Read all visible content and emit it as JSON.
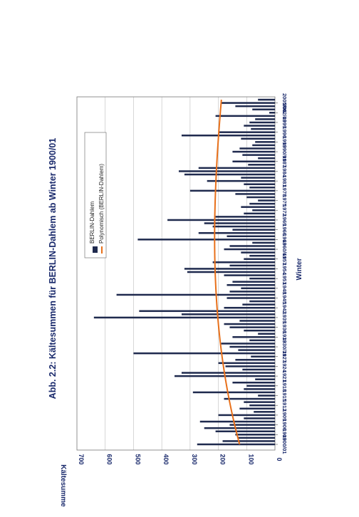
{
  "chart_data": {
    "type": "bar",
    "title": "Abb. 2.2: Kältesummen für BERLIN-Dahlem ab Winter 1900/01",
    "xlabel": "Winter",
    "ylabel": "Kältesumme",
    "ylim": [
      0,
      700
    ],
    "yticks": [
      0,
      100,
      200,
      300,
      400,
      500,
      600,
      700
    ],
    "grid": true,
    "legend_position": "top-right",
    "orientation": "rotated-90",
    "categories": [
      "1900/01",
      "1901/02",
      "1902/03",
      "1903/04",
      "1904/05",
      "1905/06",
      "1906/07",
      "1907/08",
      "1908/09",
      "1909/10",
      "1910/11",
      "1911/12",
      "1912/13",
      "1913/14",
      "1914/15",
      "1915/16",
      "1916/17",
      "1917/18",
      "1918/19",
      "1919/20",
      "1920/21",
      "1921/22",
      "1922/23",
      "1923/24",
      "1924/25",
      "1925/26",
      "1926/27",
      "1927/28",
      "1928/29",
      "1929/30",
      "1930/31",
      "1931/32",
      "1932/33",
      "1933/34",
      "1934/35",
      "1935/36",
      "1936/37",
      "1937/38",
      "1938/39",
      "1939/40",
      "1940/41",
      "1941/42",
      "1942/43",
      "1943/44",
      "1944/45",
      "1945/46",
      "1946/47",
      "1947/48",
      "1948/49",
      "1949/50",
      "1950/51",
      "1951/52",
      "1952/53",
      "1953/54",
      "1954/55",
      "1955/56",
      "1956/57",
      "1957/58",
      "1958/59",
      "1959/60",
      "1960/61",
      "1961/62",
      "1962/63",
      "1963/64",
      "1964/65",
      "1965/66",
      "1966/67",
      "1967/68",
      "1968/69",
      "1969/70",
      "1970/71",
      "1971/72",
      "1972/73",
      "1973/74",
      "1974/75",
      "1975/76",
      "1976/77",
      "1977/78",
      "1978/79",
      "1979/80",
      "1980/81",
      "1981/82",
      "1982/83",
      "1983/84",
      "1984/85",
      "1985/86",
      "1986/87",
      "1987/88",
      "1988/89",
      "1989/90",
      "1990/91",
      "1991/92",
      "1992/93",
      "1993/94",
      "1994/95",
      "1995/96",
      "1996/97",
      "1997/98",
      "1998/99",
      "1999/00",
      "2000/01",
      "2001/02",
      "2002/03",
      "2003/04",
      "2004/05",
      "2005/06",
      "2006/07"
    ],
    "tick_labels": [
      "1900/01",
      "1903",
      "1906",
      "1909",
      "1912",
      "1915",
      "1918",
      "1921",
      "1924",
      "1927",
      "1930/31",
      "1933",
      "1936",
      "1939",
      "1942",
      "1945",
      "1948",
      "1951",
      "1954",
      "1957",
      "1960/61",
      "1963",
      "1966",
      "1969",
      "1972",
      "1975",
      "1978",
      "1981",
      "1984",
      "1987",
      "1990/91",
      "1993",
      "1996",
      "1999",
      "2002/03",
      "2005/06"
    ],
    "tick_every": 3,
    "series": [
      {
        "name": "BERLIN-Dahlem",
        "type": "bar",
        "color": "#1f2a4e",
        "values": [
          275,
          185,
          130,
          140,
          210,
          250,
          160,
          265,
          110,
          200,
          75,
          125,
          90,
          110,
          180,
          60,
          290,
          110,
          100,
          150,
          70,
          355,
          330,
          115,
          175,
          200,
          140,
          85,
          500,
          130,
          160,
          190,
          90,
          150,
          60,
          110,
          160,
          180,
          125,
          640,
          330,
          480,
          180,
          115,
          90,
          170,
          560,
          160,
          120,
          170,
          150,
          90,
          180,
          310,
          320,
          160,
          220,
          110,
          90,
          120,
          180,
          160,
          80,
          485,
          170,
          270,
          150,
          220,
          250,
          380,
          210,
          110,
          80,
          120,
          90,
          60,
          100,
          140,
          300,
          90,
          110,
          240,
          120,
          320,
          340,
          270,
          95,
          150,
          60,
          115,
          150,
          125,
          80,
          70,
          120,
          330,
          200,
          85,
          110,
          90,
          70,
          210,
          20,
          80,
          140,
          190,
          60
        ]
      },
      {
        "name": "Polynomisch (BERLIN-Dahlem)",
        "type": "line",
        "color": "#e8701a",
        "coefficients": [
          125,
          3.1,
          -0.032,
          8e-05
        ]
      }
    ]
  }
}
